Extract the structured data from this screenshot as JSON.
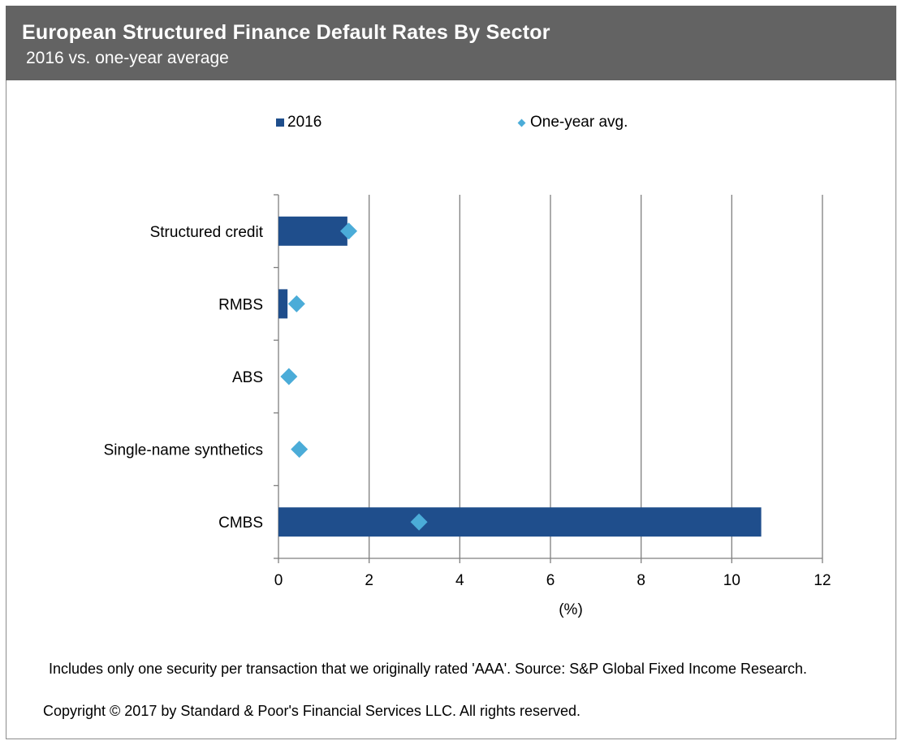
{
  "title": "European Structured Finance Default Rates By Sector",
  "subtitle": "2016 vs. one-year average",
  "colors": {
    "bar": "#1f4e8c",
    "marker": "#4bacd8",
    "header": "#636363"
  },
  "chart_data": {
    "type": "bar",
    "orientation": "horizontal",
    "categories": [
      "Structured credit",
      "RMBS",
      "ABS",
      "Single-name synthetics",
      "CMBS"
    ],
    "series": [
      {
        "name": "2016",
        "kind": "bar",
        "values": [
          1.52,
          0.2,
          0,
          0,
          10.65
        ]
      },
      {
        "name": "One-year avg.",
        "kind": "marker",
        "values": [
          1.55,
          0.4,
          0.23,
          0.46,
          3.1
        ]
      }
    ],
    "xlabel": "(%)",
    "xlim": [
      0,
      12
    ],
    "xticks": [
      0,
      2,
      4,
      6,
      8,
      10,
      12
    ],
    "grid": "vertical",
    "legend": "top"
  },
  "footnote": "Includes only one security per transaction that we originally  rated 'AAA'. Source: S&P Global Fixed Income Research.",
  "copyright": "Copyright © 2017 by Standard & Poor's Financial Services LLC. All rights reserved."
}
